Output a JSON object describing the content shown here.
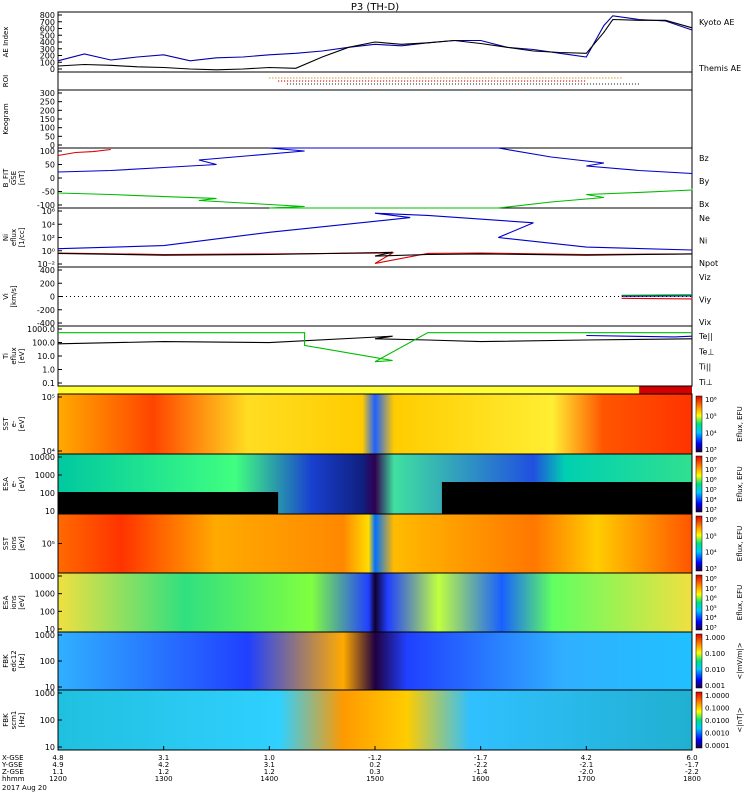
{
  "title": "P3 (TH-D)",
  "colors": {
    "kyoto_ae": "#0000aa",
    "themis_ae": "#000000",
    "bz": "#dd0000",
    "by": "#00bb00",
    "bx": "#0000cc",
    "ne": "#dd0000",
    "ni": "#000000",
    "npot": "#0000cc",
    "mode_bar_fast": "#d40000",
    "mode_bar_slow": "#ffff33"
  },
  "panels": [
    {
      "key": "ae",
      "ylabel": [
        "AE Index"
      ],
      "ticks": [
        "0",
        "100",
        "200",
        "300",
        "400",
        "500",
        "600",
        "700",
        "800"
      ],
      "legend": [
        "Kyoto AE",
        "Themis AE"
      ]
    },
    {
      "key": "roi",
      "ylabel": [
        "ROI"
      ],
      "ticks": [],
      "legend": []
    },
    {
      "key": "keogram",
      "ylabel": [
        "Keogram"
      ],
      "ticks": [
        "0",
        "50",
        "100",
        "150",
        "200",
        "250",
        "300"
      ],
      "legend": []
    },
    {
      "key": "bfit",
      "ylabel": [
        "B_FIT",
        "GSE",
        "[nT]"
      ],
      "ticks": [
        "-100",
        "-50",
        "0",
        "50",
        "100"
      ],
      "legend": [
        "Bz",
        "By",
        "Bx"
      ]
    },
    {
      "key": "density",
      "ylabel": [
        "Ni",
        "eflux",
        "[1/cc]"
      ],
      "ticks": [
        "10⁻²",
        "10⁰",
        "10²",
        "10⁴",
        "10⁶"
      ],
      "legend": [
        "Ne",
        "Ni",
        "Npot"
      ]
    },
    {
      "key": "velocity",
      "ylabel": [
        "Vi",
        "[km/s]"
      ],
      "ticks": [
        "-400",
        "-200",
        "0",
        "200",
        "400"
      ],
      "legend": [
        "Viz",
        "Viy",
        "Vix"
      ]
    },
    {
      "key": "temperature",
      "ylabel": [
        "Ti",
        "eflux",
        "[eV]"
      ],
      "ticks": [
        "0.1",
        "1.0",
        "10.0",
        "100.0",
        "1000.0"
      ],
      "legend": [
        "Te||",
        "Te⊥",
        "Ti||",
        "Ti⊥"
      ]
    },
    {
      "key": "sst_e",
      "ylabel": [
        "SST",
        "e-",
        "[eV]"
      ],
      "ticks": [
        "10⁴",
        "10⁵"
      ],
      "legend": []
    },
    {
      "key": "esa_e",
      "ylabel": [
        "ESA",
        "e-",
        "[eV]"
      ],
      "ticks": [
        "10",
        "100",
        "1000",
        "10000"
      ],
      "legend": []
    },
    {
      "key": "sst_i",
      "ylabel": [
        "SST",
        "ions",
        "[eV]"
      ],
      "ticks": [
        "10⁵"
      ],
      "legend": []
    },
    {
      "key": "esa_i",
      "ylabel": [
        "ESA",
        "ions",
        "[eV]"
      ],
      "ticks": [
        "10",
        "100",
        "1000",
        "10000"
      ],
      "legend": []
    },
    {
      "key": "fbk_e",
      "ylabel": [
        "FBK",
        "edc12",
        "[Hz]"
      ],
      "ticks": [
        "10",
        "100",
        "1000"
      ],
      "legend": []
    },
    {
      "key": "fbk_b",
      "ylabel": [
        "FBK",
        "scm1",
        "[Hz]"
      ],
      "ticks": [
        "10",
        "100",
        "1000"
      ],
      "legend": []
    }
  ],
  "colorbars": [
    {
      "label": "Eflux, EFU",
      "ticks": [
        "10³",
        "10⁴",
        "10⁵",
        "10⁶"
      ]
    },
    {
      "label": "Eflux, EFU",
      "ticks": [
        "10³",
        "10⁴",
        "10⁵",
        "10⁶",
        "10⁷",
        "10⁸"
      ]
    },
    {
      "label": "Eflux, EFU",
      "ticks": [
        "10³",
        "10⁴",
        "10⁵",
        "10⁶"
      ]
    },
    {
      "label": "Eflux, EFU",
      "ticks": [
        "10³",
        "10⁴",
        "10⁵",
        "10⁶",
        "10⁷",
        "10⁸"
      ]
    },
    {
      "label": "<|mV/m|>",
      "ticks": [
        "0.001",
        "0.010",
        "0.100",
        "1.000"
      ]
    },
    {
      "label": "<|nT|>",
      "ticks": [
        "0.0001",
        "0.0010",
        "0.0100",
        "0.1000",
        "1.0000"
      ]
    }
  ],
  "x_axis": {
    "row_labels": [
      "X-GSE",
      "Y-GSE",
      "Z-GSE",
      "hhmm",
      "2017 Aug 20"
    ],
    "ticks": [
      {
        "x": "4.8",
        "y": "4.9",
        "z": "1.1",
        "t": "1200"
      },
      {
        "x": "3.1",
        "y": "4.2",
        "z": "1.2",
        "t": "1300"
      },
      {
        "x": "1.0",
        "y": "3.1",
        "z": "1.2",
        "t": "1400"
      },
      {
        "x": "-1.2",
        "y": "0.2",
        "z": "0.3",
        "t": "1500"
      },
      {
        "x": "-1.7",
        "y": "-2.2",
        "z": "-1.4",
        "t": "1600"
      },
      {
        "x": "4.2",
        "y": "-2.1",
        "z": "-2.0",
        "t": "1700"
      },
      {
        "x": "6.0",
        "y": "-1.7",
        "z": "-2.2",
        "t": "1800"
      }
    ]
  },
  "chart_data": {
    "type": "line",
    "title": "P3 (TH-D)",
    "xlabel": "hhmm",
    "x_range": [
      1200,
      1800
    ],
    "date": "2017 Aug 20",
    "ae_index": {
      "ylim": [
        0,
        800
      ],
      "series": [
        {
          "name": "Kyoto AE",
          "x": [
            1200,
            1215,
            1230,
            1245,
            1300,
            1315,
            1330,
            1345,
            1400,
            1415,
            1430,
            1445,
            1500,
            1515,
            1530,
            1545,
            1600,
            1615,
            1630,
            1645,
            1700,
            1710,
            1715,
            1730,
            1745,
            1800
          ],
          "y": [
            150,
            240,
            160,
            200,
            230,
            150,
            190,
            200,
            230,
            250,
            280,
            330,
            370,
            350,
            390,
            420,
            420,
            330,
            300,
            250,
            200,
            620,
            750,
            700,
            680,
            560
          ]
        },
        {
          "name": "Themis AE",
          "x": [
            1200,
            1215,
            1230,
            1245,
            1300,
            1315,
            1330,
            1345,
            1400,
            1415,
            1430,
            1445,
            1500,
            1515,
            1530,
            1545,
            1600,
            1615,
            1630,
            1645,
            1700,
            1710,
            1715,
            1730,
            1745,
            1800
          ],
          "y": [
            80,
            100,
            90,
            70,
            60,
            40,
            30,
            40,
            60,
            50,
            200,
            330,
            400,
            370,
            390,
            420,
            380,
            330,
            280,
            260,
            250,
            530,
            700,
            690,
            690,
            590
          ]
        }
      ]
    },
    "b_fit_gse": {
      "ylim": [
        -100,
        100
      ],
      "series": [
        {
          "name": "Bz",
          "x": [
            1200,
            1210,
            1220,
            1230
          ],
          "y": [
            75,
            85,
            88,
            95
          ]
        },
        {
          "name": "By",
          "x": [
            1200,
            1230,
            1260,
            1290,
            1320,
            1350,
            1380,
            1400,
            1610,
            1640,
            1670,
            1700,
            1730,
            1760,
            1800
          ],
          "y": [
            -50,
            -55,
            -62,
            -68,
            -75,
            -85,
            -95,
            -100,
            -100,
            -80,
            -65,
            -55,
            -48,
            -40,
            -35
          ]
        },
        {
          "name": "Bx",
          "x": [
            1200,
            1230,
            1260,
            1290,
            1320,
            1350,
            1380,
            1400,
            1610,
            1640,
            1670,
            1700,
            1730,
            1760,
            1800
          ],
          "y": [
            20,
            25,
            35,
            45,
            60,
            75,
            90,
            100,
            100,
            70,
            50,
            40,
            25,
            15,
            10
          ]
        }
      ]
    },
    "density": {
      "ylim": [
        "1e-2",
        "1e6"
      ],
      "log": true,
      "series": [
        {
          "name": "Ne",
          "x": [
            1200,
            1300,
            1400,
            1470,
            1500,
            1530,
            1600,
            1700,
            1800
          ],
          "y": [
            0.8,
            0.5,
            0.6,
            0.8,
            0.03,
            0.7,
            0.8,
            0.5,
            0.6
          ]
        },
        {
          "name": "Ni",
          "x": [
            1200,
            1300,
            1400,
            1470,
            1500,
            1530,
            1600,
            1700,
            1800
          ],
          "y": [
            0.7,
            0.4,
            0.5,
            1.0,
            0.3,
            0.5,
            0.6,
            0.4,
            0.6
          ]
        },
        {
          "name": "Npot",
          "x": [
            1200,
            1300,
            1400,
            1480,
            1500,
            1530,
            1590,
            1610,
            1700,
            1800
          ],
          "y": [
            3,
            8,
            500,
            50000,
            200000,
            100000,
            10000,
            100,
            5,
            2
          ]
        }
      ]
    },
    "velocity": {
      "ylim": [
        -500,
        500
      ],
      "series": [
        {
          "name": "Viz",
          "x": [
            1720,
            1760,
            1800
          ],
          "y": [
            -30,
            -40,
            -20
          ]
        },
        {
          "name": "Viy",
          "x": [
            1720,
            1760,
            1800
          ],
          "y": [
            20,
            30,
            30
          ]
        },
        {
          "name": "Vix",
          "x": [
            1720,
            1760,
            1800
          ],
          "y": [
            5,
            10,
            5
          ]
        }
      ]
    },
    "temperature": {
      "ylim": [
        "0.1",
        "5000"
      ],
      "log": true,
      "series": [
        {
          "name": "Te||",
          "x": [
            1200,
            1300,
            1400,
            1470,
            1500,
            1530,
            1600,
            1700,
            1800
          ],
          "y": [
            200,
            300,
            250,
            800,
            500,
            400,
            300,
            400,
            500
          ]
        },
        {
          "name": "Ti||",
          "x": [
            1200,
            1300,
            1380,
            1420,
            1470,
            1500,
            1530,
            1600,
            1700,
            1800
          ],
          "y": [
            1500,
            1500,
            1500,
            150,
            10,
            8,
            1500,
            1500,
            1500,
            1500
          ]
        },
        {
          "name": "Ti⊥",
          "x": [
            1700,
            1750,
            1800
          ],
          "y": [
            900,
            700,
            800
          ]
        }
      ]
    }
  }
}
